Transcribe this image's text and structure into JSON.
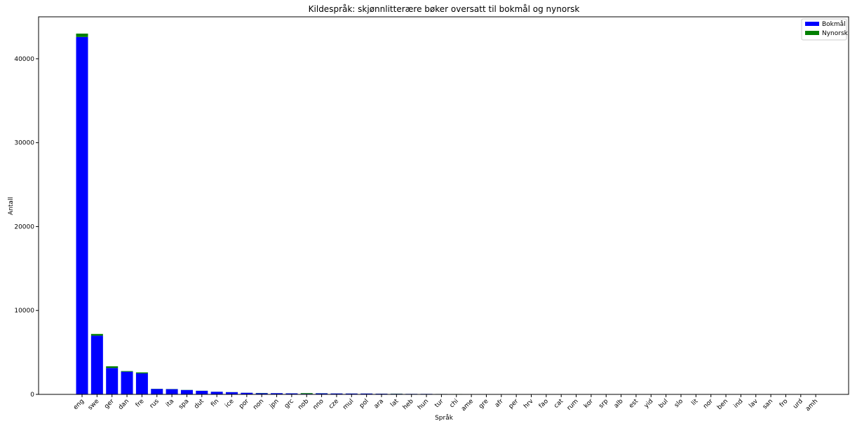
{
  "chart_data": {
    "type": "bar",
    "stacked": true,
    "title": "Kildespråk: skjønnlitterære bøker oversatt til bokmål og nynorsk",
    "xlabel": "Språk",
    "ylabel": "Antall",
    "ylim": [
      0,
      45000
    ],
    "yticks": [
      0,
      10000,
      20000,
      30000,
      40000
    ],
    "grid": false,
    "legend_position": "top-right",
    "categories": [
      "eng",
      "swe",
      "ger",
      "dan",
      "fre",
      "rus",
      "ita",
      "spa",
      "dut",
      "fin",
      "ice",
      "por",
      "non",
      "jpn",
      "grc",
      "nob",
      "nno",
      "cze",
      "mul",
      "pol",
      "ara",
      "lat",
      "heb",
      "hun",
      "tur",
      "chi",
      "ame",
      "gre",
      "afr",
      "per",
      "hrv",
      "fao",
      "cat",
      "rum",
      "kor",
      "srp",
      "alb",
      "est",
      "yid",
      "bul",
      "slo",
      "lit",
      "nor",
      "ben",
      "ind",
      "lav",
      "san",
      "fro",
      "urd",
      "amh"
    ],
    "series": [
      {
        "name": "Bokmål",
        "color": "#0000ff",
        "values": [
          42600,
          7000,
          3150,
          2700,
          2500,
          650,
          620,
          520,
          420,
          310,
          260,
          190,
          140,
          140,
          120,
          70,
          120,
          110,
          100,
          100,
          80,
          70,
          60,
          60,
          45,
          40,
          35,
          35,
          30,
          25,
          20,
          10,
          10,
          8,
          8,
          7,
          6,
          5,
          5,
          5,
          4,
          4,
          3,
          3,
          3,
          3,
          2,
          2,
          2,
          1
        ]
      },
      {
        "name": "Nynorsk",
        "color": "#008000",
        "values": [
          400,
          200,
          200,
          80,
          120,
          20,
          20,
          15,
          15,
          10,
          15,
          10,
          30,
          10,
          10,
          80,
          20,
          10,
          10,
          10,
          8,
          20,
          5,
          5,
          4,
          5,
          4,
          3,
          3,
          3,
          3,
          15,
          2,
          2,
          1,
          1,
          1,
          1,
          1,
          1,
          1,
          1,
          1,
          1,
          1,
          1,
          1,
          1,
          1,
          1
        ]
      }
    ]
  }
}
